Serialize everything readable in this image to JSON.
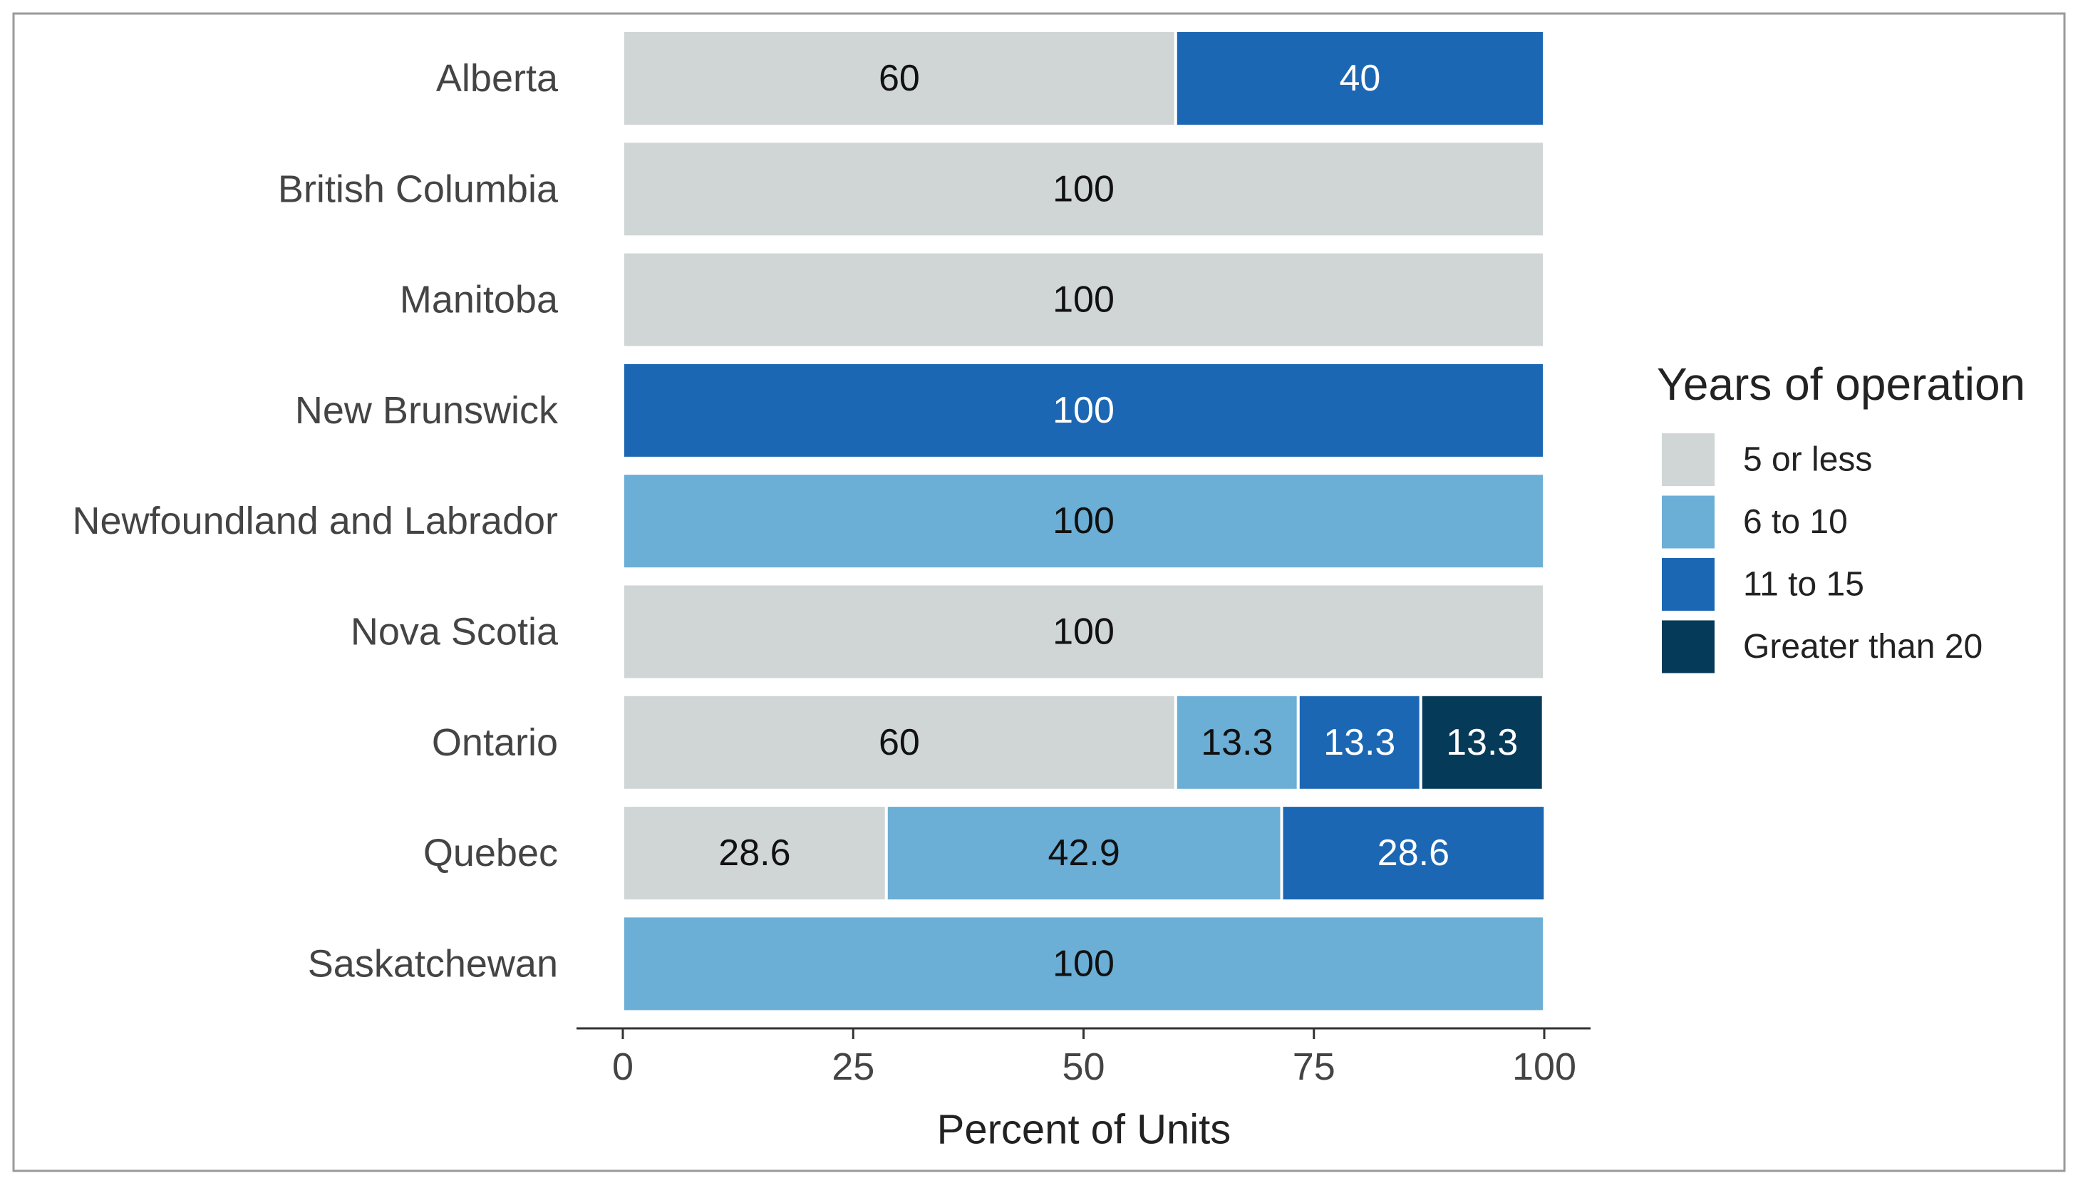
{
  "chart_data": {
    "type": "bar",
    "orientation": "horizontal",
    "stacked": true,
    "categories": [
      "Alberta",
      "British Columbia",
      "Manitoba",
      "New Brunswick",
      "Newfoundland and Labrador",
      "Nova Scotia",
      "Ontario",
      "Quebec",
      "Saskatchewan"
    ],
    "series": [
      {
        "name": "5 or less",
        "color": "#d0d5d6",
        "values": [
          60,
          100,
          100,
          null,
          null,
          100,
          60,
          28.6,
          null
        ]
      },
      {
        "name": "6 to 10",
        "color": "#6baed6",
        "values": [
          null,
          null,
          null,
          null,
          100,
          null,
          13.3,
          42.9,
          100
        ]
      },
      {
        "name": "11 to 15",
        "color": "#1c67b3",
        "values": [
          40,
          null,
          null,
          100,
          null,
          null,
          13.3,
          28.6,
          null
        ]
      },
      {
        "name": "Greater than 20",
        "color": "#063a59",
        "values": [
          null,
          null,
          null,
          null,
          null,
          null,
          13.3,
          null,
          null
        ]
      }
    ],
    "x_label": "Percent of Units",
    "legend_title": "Years of operation",
    "legend": "right",
    "xlim": [
      0,
      100
    ],
    "xticks": [
      0,
      25,
      50,
      75,
      100
    ],
    "grid": false
  }
}
